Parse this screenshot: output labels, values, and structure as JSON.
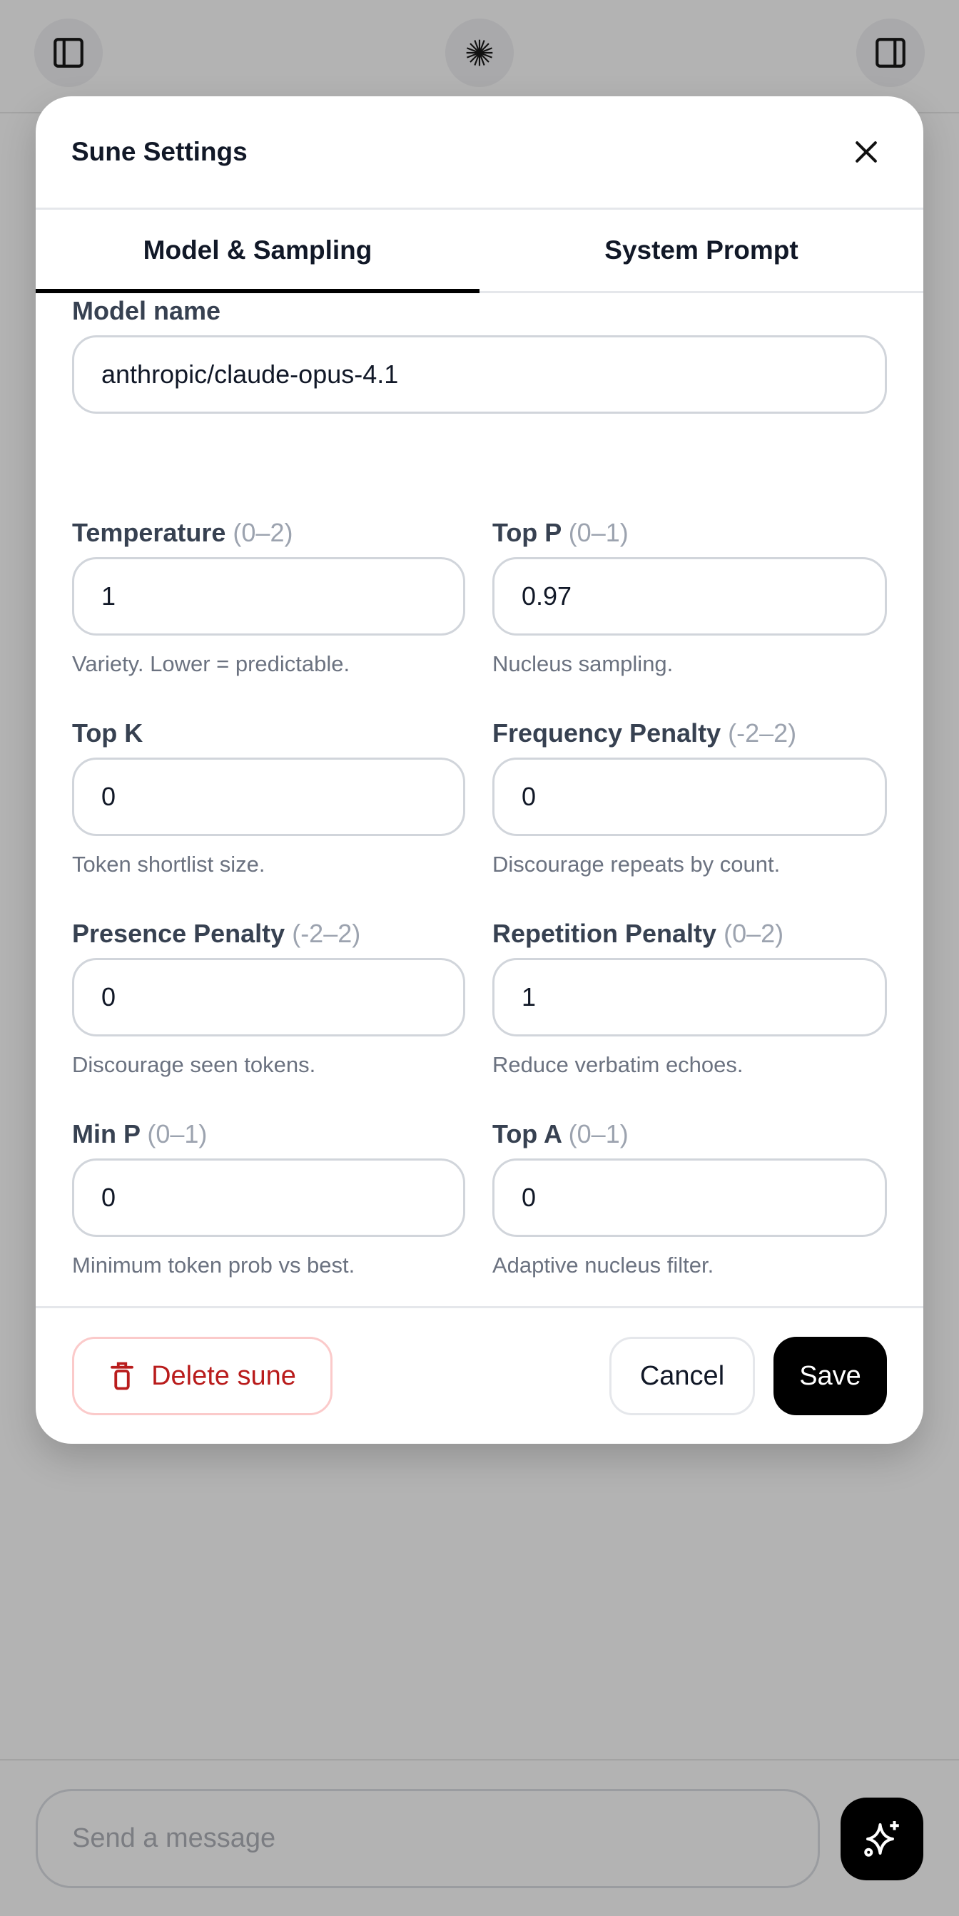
{
  "topbar": {
    "left_icon": "sidebar-left-icon",
    "center_icon": "sune-logo-icon",
    "right_icon": "sidebar-right-icon"
  },
  "modal": {
    "title": "Sune Settings",
    "tabs": [
      {
        "label": "Model & Sampling",
        "active": true
      },
      {
        "label": "System Prompt",
        "active": false
      }
    ],
    "model_name": {
      "label": "Model name",
      "value": "anthropic/claude-opus-4.1"
    },
    "fields": [
      {
        "label": "Temperature",
        "range": "(0–2)",
        "value": "1",
        "help": "Variety. Lower = predictable."
      },
      {
        "label": "Top P",
        "range": "(0–1)",
        "value": "0.97",
        "help": "Nucleus sampling."
      },
      {
        "label": "Top K",
        "range": "",
        "value": "0",
        "help": "Token shortlist size."
      },
      {
        "label": "Frequency Penalty",
        "range": "(-2–2)",
        "value": "0",
        "help": "Discourage repeats by count."
      },
      {
        "label": "Presence Penalty",
        "range": "(-2–2)",
        "value": "0",
        "help": "Discourage seen tokens."
      },
      {
        "label": "Repetition Penalty",
        "range": "(0–2)",
        "value": "1",
        "help": "Reduce verbatim echoes."
      },
      {
        "label": "Min P",
        "range": "(0–1)",
        "value": "0",
        "help": "Minimum token prob vs best."
      },
      {
        "label": "Top A",
        "range": "(0–1)",
        "value": "0",
        "help": "Adaptive nucleus filter."
      }
    ],
    "footer": {
      "delete_label": "Delete sune",
      "cancel_label": "Cancel",
      "save_label": "Save"
    }
  },
  "composer": {
    "placeholder": "Send a message",
    "send_icon": "sparkles-icon"
  },
  "colors": {
    "danger": "#b91c1c",
    "primary": "#000000",
    "overlay": "#b3b3b3"
  }
}
